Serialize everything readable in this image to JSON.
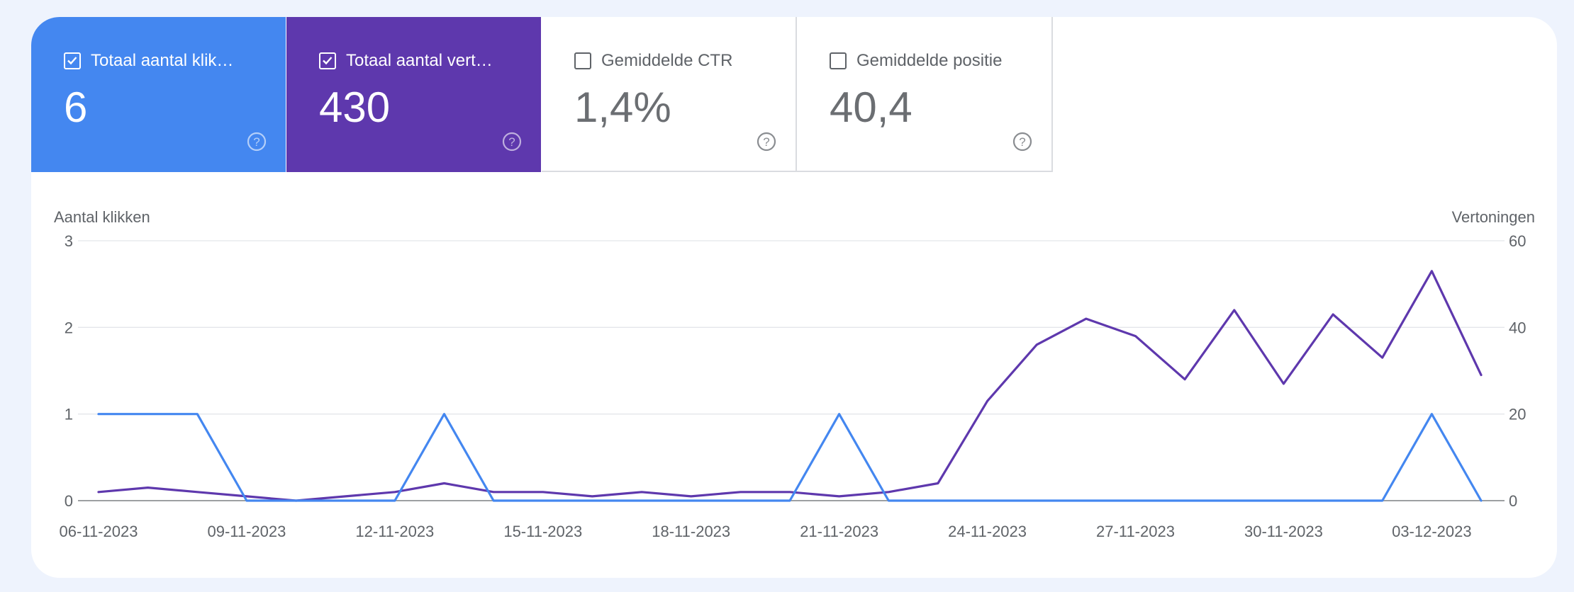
{
  "metrics": [
    {
      "label": "Totaal aantal klik…",
      "value": "6",
      "checked": true,
      "color": "#4487f0"
    },
    {
      "label": "Totaal aantal vert…",
      "value": "430",
      "checked": true,
      "color": "#5e38ad"
    },
    {
      "label": "Gemiddelde CTR",
      "value": "1,4%",
      "checked": false
    },
    {
      "label": "Gemiddelde positie",
      "value": "40,4",
      "checked": false
    }
  ],
  "chart_data": {
    "type": "line",
    "x": [
      "06-11-2023",
      "07-11-2023",
      "08-11-2023",
      "09-11-2023",
      "10-11-2023",
      "11-11-2023",
      "12-11-2023",
      "13-11-2023",
      "14-11-2023",
      "15-11-2023",
      "16-11-2023",
      "17-11-2023",
      "18-11-2023",
      "19-11-2023",
      "20-11-2023",
      "21-11-2023",
      "22-11-2023",
      "23-11-2023",
      "24-11-2023",
      "25-11-2023",
      "26-11-2023",
      "27-11-2023",
      "28-11-2023",
      "29-11-2023",
      "30-11-2023",
      "01-12-2023",
      "02-12-2023",
      "03-12-2023",
      "04-12-2023"
    ],
    "xticks": [
      "06-11-2023",
      "09-11-2023",
      "12-11-2023",
      "15-11-2023",
      "18-11-2023",
      "21-11-2023",
      "24-11-2023",
      "27-11-2023",
      "30-11-2023",
      "03-12-2023"
    ],
    "series": [
      {
        "name": "Aantal klikken",
        "axis": "left",
        "color": "#4487f0",
        "values": [
          1,
          1,
          1,
          0,
          0,
          0,
          0,
          1,
          0,
          0,
          0,
          0,
          0,
          0,
          0,
          1,
          0,
          0,
          0,
          0,
          0,
          0,
          0,
          0,
          0,
          0,
          0,
          1,
          0
        ]
      },
      {
        "name": "Vertoningen",
        "axis": "right",
        "color": "#5e38ad",
        "values": [
          2,
          3,
          2,
          1,
          0,
          1,
          2,
          4,
          2,
          2,
          1,
          2,
          1,
          2,
          2,
          1,
          2,
          4,
          23,
          36,
          42,
          38,
          28,
          44,
          27,
          43,
          33,
          53,
          29
        ]
      }
    ],
    "ylabel_left": "Aantal klikken",
    "ylabel_right": "Vertoningen",
    "ylim_left": [
      0,
      3
    ],
    "ylim_right": [
      0,
      60
    ],
    "yticks_left": [
      0,
      1,
      2,
      3
    ],
    "yticks_right": [
      0,
      20,
      40,
      60
    ],
    "grid": true
  }
}
